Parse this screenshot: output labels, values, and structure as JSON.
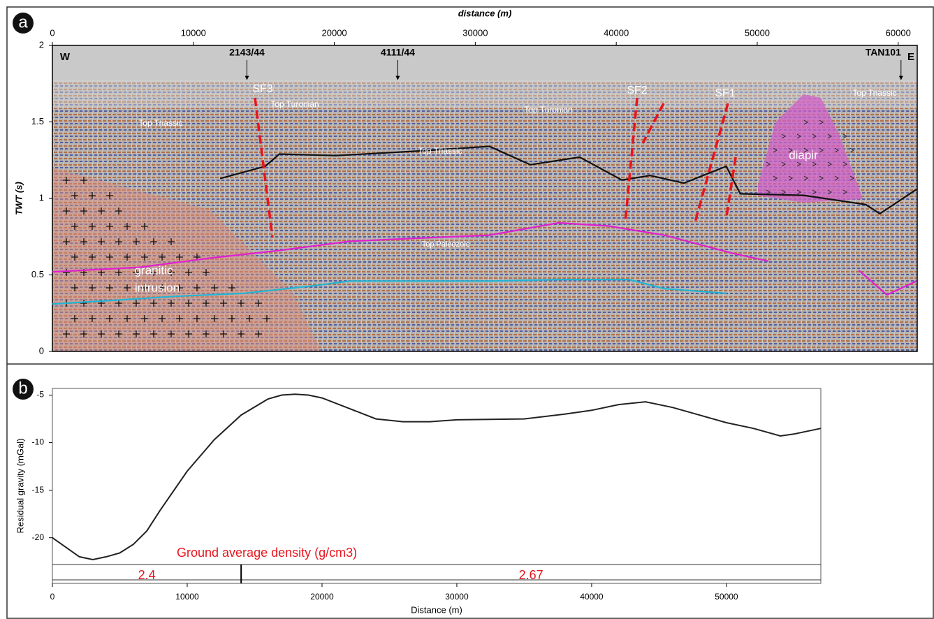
{
  "chart_data": [
    {
      "type": "seismic-section",
      "panel": "a",
      "xlabel": "distance (m)",
      "ylabel": "TWT (s)",
      "xlim": [
        0,
        61350
      ],
      "xticks": [
        0,
        10000,
        20000,
        30000,
        40000,
        50000,
        60000
      ],
      "ylim": [
        0,
        2
      ],
      "yticks": [
        0,
        0.5,
        1,
        1.5,
        2
      ],
      "series": [
        {
          "name": "Top Turonian",
          "color": "#1fb5d6",
          "x": [
            0,
            3700,
            8700,
            13600,
            18600,
            21100,
            26000,
            31000,
            35900,
            40900,
            43400,
            47800
          ],
          "values": [
            0.31,
            0.33,
            0.36,
            0.38,
            0.43,
            0.46,
            0.46,
            0.46,
            0.47,
            0.47,
            0.41,
            0.38
          ]
        },
        {
          "name": "Top Triassic",
          "color": "#e020d0",
          "x": [
            0,
            6200,
            11200,
            16100,
            21100,
            26000,
            31000,
            35900,
            39400,
            43400,
            48300,
            50800,
            null,
            57200,
            59200,
            61300
          ],
          "values": [
            0.52,
            0.55,
            0.61,
            0.66,
            0.72,
            0.74,
            0.76,
            0.84,
            0.82,
            0.76,
            0.64,
            0.59,
            null,
            0.53,
            0.37,
            0.46
          ]
        },
        {
          "name": "Top Paleozoic",
          "color": "#111111",
          "x": [
            11900,
            15100,
            16100,
            20100,
            26000,
            31000,
            33900,
            37400,
            40400,
            42400,
            44800,
            47800,
            48800,
            53300,
            57700,
            58700,
            61300
          ],
          "values": [
            1.13,
            1.21,
            1.29,
            1.28,
            1.31,
            1.34,
            1.22,
            1.27,
            1.12,
            1.15,
            1.1,
            1.21,
            1.03,
            1.02,
            0.96,
            0.9,
            1.06
          ]
        }
      ],
      "wells": [
        {
          "name": "2143/44",
          "x": 13800
        },
        {
          "name": "4111/44",
          "x": 24500
        },
        {
          "name": "TAN101",
          "x": 60200
        }
      ],
      "labels": [
        "W",
        "E",
        "SF3",
        "SF2",
        "SF1",
        "Top Turonian",
        "Top Turonian",
        "Top Triassic",
        "Top Triassic",
        "Top Triassic",
        "Top Paleozoic",
        "diapir",
        "granitic",
        "intrusion"
      ]
    },
    {
      "type": "line",
      "panel": "b",
      "xlabel": "Distance (m)",
      "ylabel": "Residual gravity (mGal)",
      "xlim": [
        0,
        57000
      ],
      "xticks": [
        0,
        10000,
        20000,
        30000,
        40000,
        50000
      ],
      "ylim": [
        -24.8,
        -4.3
      ],
      "yticks": [
        -5,
        -10,
        -15,
        -20
      ],
      "series": [
        {
          "color": "#222222",
          "x": [
            0,
            2000,
            3000,
            4000,
            5000,
            6000,
            7000,
            8000,
            10000,
            12000,
            14000,
            16000,
            17000,
            18000,
            19000,
            20000,
            22000,
            24000,
            26000,
            28000,
            30000,
            35000,
            38000,
            40000,
            42000,
            44000,
            46000,
            48000,
            50000,
            52000,
            54000,
            55000,
            57000
          ],
          "values": [
            -20.0,
            -22.0,
            -22.3,
            -22.0,
            -21.6,
            -20.7,
            -19.3,
            -17.1,
            -13.0,
            -9.7,
            -7.1,
            -5.4,
            -5.0,
            -4.9,
            -5.0,
            -5.3,
            -6.4,
            -7.5,
            -7.8,
            -7.8,
            -7.6,
            -7.5,
            -7.0,
            -6.6,
            -6.0,
            -5.7,
            -6.3,
            -7.1,
            -7.9,
            -8.5,
            -9.3,
            -9.1,
            -8.5
          ]
        }
      ],
      "density": {
        "title": "Ground average density (g/cm3)",
        "boundary": 14000,
        "values": [
          2.4,
          2.67
        ]
      }
    }
  ]
}
